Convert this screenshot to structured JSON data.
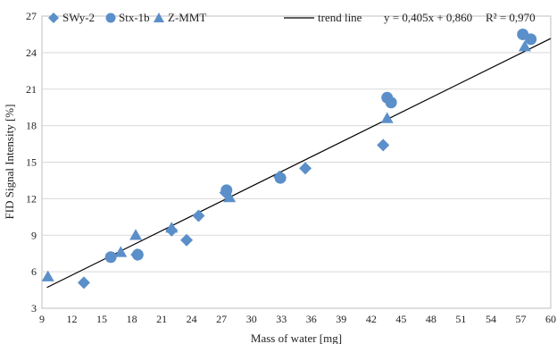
{
  "chart_data": {
    "type": "scatter",
    "xlabel": "Mass of water [mg]",
    "ylabel": "FID Signal Intensity [%]",
    "xlim": [
      9,
      60
    ],
    "ylim": [
      3,
      27
    ],
    "xticks": [
      "9",
      "12",
      "15",
      "18",
      "21",
      "24",
      "27",
      "30",
      "33",
      "36",
      "39",
      "42",
      "45",
      "48",
      "51",
      "54",
      "57",
      "60"
    ],
    "yticks": [
      "3",
      "6",
      "9",
      "12",
      "15",
      "18",
      "21",
      "24",
      "27"
    ],
    "grid": "horizontal",
    "legend_position": "top",
    "series": [
      {
        "name": "SWy-2",
        "marker": "diamond",
        "color": "#5b8fc9",
        "points": [
          [
            13.2,
            5.1
          ],
          [
            18.5,
            7.4
          ],
          [
            22.0,
            9.4
          ],
          [
            23.5,
            8.6
          ],
          [
            24.7,
            10.6
          ],
          [
            27.4,
            12.5
          ],
          [
            32.8,
            13.8
          ],
          [
            35.4,
            14.5
          ],
          [
            43.2,
            16.4
          ]
        ]
      },
      {
        "name": "Stx-1b",
        "marker": "circle",
        "color": "#5b8fc9",
        "points": [
          [
            15.9,
            7.2
          ],
          [
            18.6,
            7.4
          ],
          [
            27.5,
            12.7
          ],
          [
            32.9,
            13.7
          ],
          [
            43.6,
            20.3
          ],
          [
            44.0,
            19.9
          ],
          [
            57.2,
            25.5
          ],
          [
            58.0,
            25.1
          ]
        ]
      },
      {
        "name": "Z-MMT",
        "marker": "triangle",
        "color": "#5b8fc9",
        "points": [
          [
            9.6,
            5.6
          ],
          [
            16.9,
            7.6
          ],
          [
            18.4,
            9.0
          ],
          [
            22.0,
            9.6
          ],
          [
            27.8,
            12.1
          ],
          [
            43.6,
            18.6
          ],
          [
            57.4,
            24.5
          ]
        ]
      }
    ],
    "trend": {
      "name": "trend line",
      "equation": "y = 0,405x + 0,860",
      "r2": "R² = 0,970",
      "slope": 0.405,
      "intercept": 0.86,
      "x_range": [
        9.5,
        60
      ],
      "color": "#000000"
    }
  }
}
